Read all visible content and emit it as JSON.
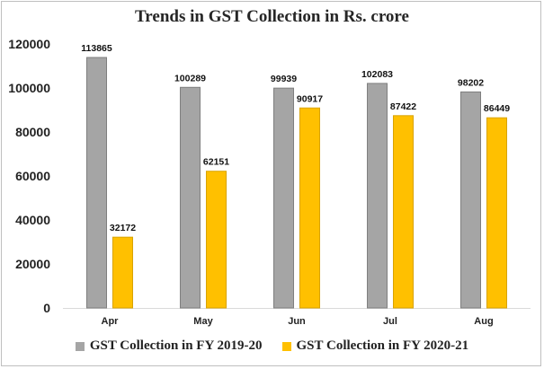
{
  "chart_data": {
    "type": "bar",
    "title": "Trends in GST Collection in Rs. crore",
    "categories": [
      "Apr",
      "May",
      "Jun",
      "Jul",
      "Aug"
    ],
    "series": [
      {
        "name": "GST Collection in FY 2019-20",
        "color": "#a5a5a5",
        "values": [
          113865,
          100289,
          99939,
          102083,
          98202
        ]
      },
      {
        "name": "GST Collection in FY 2020-21",
        "color": "#ffc000",
        "values": [
          32172,
          62151,
          90917,
          87422,
          86449
        ]
      }
    ],
    "ylim": [
      0,
      120000
    ],
    "yticks": [
      0,
      20000,
      40000,
      60000,
      80000,
      100000,
      120000
    ],
    "grid": false,
    "legend": "bottom",
    "xlabel": "",
    "ylabel": ""
  }
}
